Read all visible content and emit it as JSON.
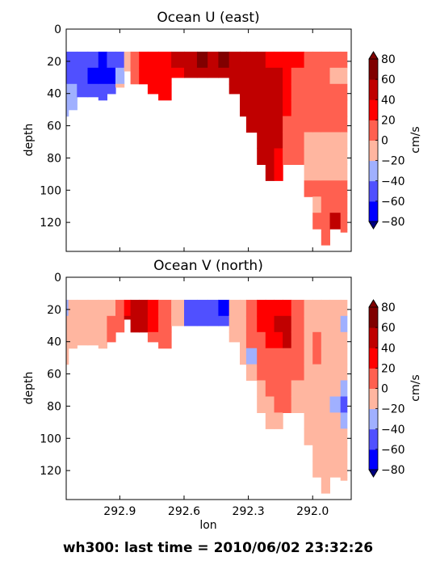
{
  "footer": "wh300: last time = 2010/06/02 23:32:26",
  "colorbar_ticks": [
    "80",
    "60",
    "40",
    "20",
    "0",
    "−20",
    "−40",
    "−60",
    "−80"
  ],
  "colorbar_levels": [
    -80,
    -60,
    -40,
    -20,
    0,
    20,
    40,
    60,
    80
  ],
  "colorbar_colors": [
    "#0000ff",
    "#5050ff",
    "#a0b0ff",
    "#ffb6a0",
    "#ff6050",
    "#ff0000",
    "#c00000",
    "#800000"
  ],
  "colorbar_unit": "cm/s",
  "shared_xlabel": "lon",
  "chart_data": [
    {
      "type": "heatmap",
      "title": "Ocean U (east)",
      "xlabel": "",
      "ylabel": "depth",
      "x_ticks": [
        292.9,
        292.6,
        292.3,
        292.0
      ],
      "x_tick_labels": [
        "292.9",
        "292.6",
        "292.3",
        "292.0"
      ],
      "y_ticks": [
        0,
        20,
        40,
        60,
        80,
        100,
        120
      ],
      "y_tick_labels": [
        "0",
        "20",
        "40",
        "60",
        "80",
        "100",
        "120"
      ],
      "xlim": [
        293.15,
        291.82
      ],
      "ylim": [
        138,
        0
      ],
      "colorbar_label": "cm/s",
      "grid": false,
      "columns": [
        {
          "x": 293.14,
          "x0": 293.15,
          "bottom": 58,
          "v": [
            -45,
            -42,
            -30,
            -28
          ]
        },
        {
          "x": 293.1,
          "bottom": 50,
          "v": [
            -50,
            -48,
            -40,
            -35
          ]
        },
        {
          "x": 293.05,
          "bottom": 42,
          "v": [
            -60,
            -58,
            -55
          ]
        },
        {
          "x": 293.0,
          "bottom": 42,
          "v": [
            -60,
            -62,
            -58
          ]
        },
        {
          "x": 292.96,
          "bottom": 46,
          "v": [
            -62,
            -65,
            -60
          ]
        },
        {
          "x": 292.92,
          "bottom": 40,
          "v": [
            -60,
            -62,
            -58
          ]
        },
        {
          "x": 292.88,
          "bottom": 36,
          "v": [
            -45,
            -30,
            -15
          ]
        },
        {
          "x": 292.85,
          "bottom": 26,
          "v": [
            -15,
            -5
          ]
        },
        {
          "x": 292.81,
          "bottom": 36,
          "v": [
            10,
            8
          ]
        },
        {
          "x": 292.77,
          "bottom": 36,
          "v": [
            25,
            22
          ]
        },
        {
          "x": 292.72,
          "bottom": 40,
          "v": [
            30,
            28,
            25
          ]
        },
        {
          "x": 292.66,
          "bottom": 46,
          "v": [
            35,
            32,
            30
          ]
        },
        {
          "x": 292.6,
          "bottom": 30,
          "v": [
            45,
            38
          ]
        },
        {
          "x": 292.54,
          "bottom": 30,
          "v": [
            55,
            48
          ]
        },
        {
          "x": 292.49,
          "bottom": 30,
          "v": [
            65,
            55
          ]
        },
        {
          "x": 292.44,
          "bottom": 30,
          "v": [
            55,
            52
          ]
        },
        {
          "x": 292.39,
          "bottom": 30,
          "v": [
            60,
            55
          ]
        },
        {
          "x": 292.34,
          "bottom": 40,
          "v": [
            50,
            55,
            50
          ]
        },
        {
          "x": 292.31,
          "bottom": 58,
          "v": [
            45,
            55,
            50,
            42
          ]
        },
        {
          "x": 292.26,
          "bottom": 68,
          "v": [
            45,
            48,
            45,
            44,
            44
          ]
        },
        {
          "x": 292.22,
          "bottom": 92,
          "v": [
            42,
            45,
            50,
            50,
            45,
            42,
            42
          ]
        },
        {
          "x": 292.18,
          "bottom": 100,
          "v": [
            38,
            45,
            50,
            55,
            55,
            48,
            42,
            40
          ]
        },
        {
          "x": 292.14,
          "bottom": 100,
          "v": [
            38,
            42,
            48,
            55,
            55,
            45,
            35,
            30
          ]
        },
        {
          "x": 292.1,
          "bottom": 86,
          "v": [
            30,
            35,
            30,
            25,
            15,
            12,
            10
          ]
        },
        {
          "x": 292.04,
          "bottom": 86,
          "v": [
            25,
            15,
            10,
            5,
            3,
            2,
            2
          ]
        },
        {
          "x": 292.0,
          "bottom": 106,
          "v": [
            10,
            15,
            12,
            10,
            5,
            -5,
            -5,
            -8,
            10
          ]
        },
        {
          "x": 291.96,
          "bottom": 126,
          "v": [
            8,
            12,
            10,
            8,
            5,
            -5,
            -8,
            -5,
            5,
            -5,
            10
          ]
        },
        {
          "x": 291.92,
          "bottom": 136,
          "v": [
            5,
            8,
            10,
            5,
            3,
            -5,
            -10,
            -5,
            5,
            10,
            12,
            10
          ]
        },
        {
          "x": 291.87,
          "bottom": 124,
          "v": [
            5,
            -5,
            5,
            3,
            2,
            -5,
            -10,
            -10,
            5,
            10,
            45,
            10
          ]
        },
        {
          "x": 291.84,
          "bottom": 126,
          "v": [
            5,
            -10,
            3,
            2,
            2,
            -5,
            -5,
            -5,
            5,
            10,
            12,
            10
          ]
        }
      ]
    },
    {
      "type": "heatmap",
      "title": "Ocean V (north)",
      "xlabel": "lon",
      "ylabel": "depth",
      "x_ticks": [
        292.9,
        292.6,
        292.3,
        292.0
      ],
      "x_tick_labels": [
        "292.9",
        "292.6",
        "292.3",
        "292.0"
      ],
      "y_ticks": [
        0,
        20,
        40,
        60,
        80,
        100,
        120
      ],
      "y_tick_labels": [
        "0",
        "20",
        "40",
        "60",
        "80",
        "100",
        "120"
      ],
      "xlim": [
        293.15,
        291.82
      ],
      "ylim": [
        138,
        0
      ],
      "colorbar_label": "cm/s",
      "grid": false,
      "columns": [
        {
          "x": 293.14,
          "x0": 293.15,
          "bottom": 58,
          "v": [
            -25,
            -15,
            -12,
            -10
          ]
        },
        {
          "x": 293.1,
          "bottom": 50,
          "v": [
            -15,
            -10,
            -8
          ]
        },
        {
          "x": 293.05,
          "bottom": 42,
          "v": [
            -8,
            -10,
            -8
          ]
        },
        {
          "x": 293.0,
          "bottom": 42,
          "v": [
            -10,
            -12,
            -8
          ]
        },
        {
          "x": 292.96,
          "bottom": 46,
          "v": [
            -10,
            -8,
            -5
          ]
        },
        {
          "x": 292.92,
          "bottom": 40,
          "v": [
            -5,
            5,
            8
          ]
        },
        {
          "x": 292.88,
          "bottom": 36,
          "v": [
            10,
            12
          ]
        },
        {
          "x": 292.85,
          "bottom": 26,
          "v": [
            25,
            45
          ]
        },
        {
          "x": 292.81,
          "bottom": 36,
          "v": [
            55,
            50
          ]
        },
        {
          "x": 292.77,
          "bottom": 36,
          "v": [
            50,
            45
          ]
        },
        {
          "x": 292.72,
          "bottom": 40,
          "v": [
            35,
            25,
            15
          ]
        },
        {
          "x": 292.66,
          "bottom": 46,
          "v": [
            10,
            12,
            8
          ]
        },
        {
          "x": 292.6,
          "bottom": 30,
          "v": [
            -10,
            -15
          ]
        },
        {
          "x": 292.54,
          "bottom": 30,
          "v": [
            -55,
            -50
          ]
        },
        {
          "x": 292.49,
          "bottom": 30,
          "v": [
            -60,
            -55
          ]
        },
        {
          "x": 292.44,
          "bottom": 30,
          "v": [
            -60,
            -50
          ]
        },
        {
          "x": 292.39,
          "bottom": 30,
          "v": [
            -65,
            -50
          ]
        },
        {
          "x": 292.34,
          "bottom": 40,
          "v": [
            -20,
            -15,
            -10
          ]
        },
        {
          "x": 292.31,
          "bottom": 58,
          "v": [
            -5,
            -10,
            -12,
            -10
          ]
        },
        {
          "x": 292.26,
          "bottom": 68,
          "v": [
            10,
            12,
            8,
            -25,
            -15
          ]
        },
        {
          "x": 292.22,
          "bottom": 92,
          "v": [
            20,
            25,
            15,
            10,
            12,
            -5,
            -5
          ]
        },
        {
          "x": 292.18,
          "bottom": 100,
          "v": [
            20,
            30,
            25,
            15,
            12,
            10,
            -5,
            -5
          ]
        },
        {
          "x": 292.14,
          "bottom": 100,
          "v": [
            22,
            42,
            25,
            15,
            12,
            10,
            5,
            -5
          ]
        },
        {
          "x": 292.1,
          "bottom": 86,
          "v": [
            35,
            45,
            42,
            15,
            10,
            8,
            5
          ]
        },
        {
          "x": 292.04,
          "bottom": 86,
          "v": [
            15,
            12,
            10,
            8,
            5,
            -5,
            -5
          ]
        },
        {
          "x": 292.0,
          "bottom": 106,
          "v": [
            -5,
            -8,
            -10,
            -10,
            -12,
            -10,
            -8,
            -5,
            -5
          ]
        },
        {
          "x": 291.96,
          "bottom": 126,
          "v": [
            -5,
            -8,
            5,
            15,
            -5,
            -8,
            -10,
            -12,
            -10,
            -8,
            -5
          ]
        },
        {
          "x": 291.92,
          "bottom": 136,
          "v": [
            -8,
            -10,
            -10,
            -10,
            -12,
            -12,
            -10,
            -10,
            -8,
            -10,
            -5,
            -5
          ]
        },
        {
          "x": 291.87,
          "bottom": 124,
          "v": [
            -10,
            -10,
            -12,
            -10,
            -15,
            -12,
            -25,
            -15,
            -8,
            -8,
            -5,
            -5
          ]
        },
        {
          "x": 291.84,
          "bottom": 126,
          "v": [
            -10,
            -25,
            -12,
            -10,
            -15,
            -25,
            -45,
            -30,
            -10,
            -8,
            -5,
            -5
          ]
        }
      ]
    }
  ]
}
